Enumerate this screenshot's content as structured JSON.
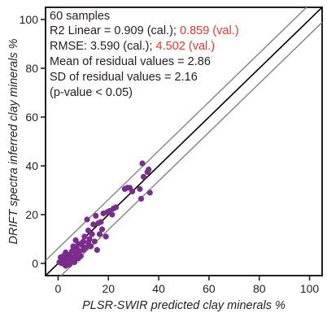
{
  "chart_data": {
    "type": "scatter",
    "xlabel": "PLSR-SWIR predicted clay minerals %",
    "ylabel": "DRIFT spectra inferred clay minerals %",
    "xlim": [
      -5,
      105
    ],
    "ylim": [
      -5,
      105
    ],
    "x_ticks": [
      "0",
      "20",
      "40",
      "60",
      "80",
      "100"
    ],
    "y_ticks": [
      "0",
      "20",
      "40",
      "60",
      "80",
      "100"
    ],
    "grid": false,
    "reference_lines": [
      {
        "kind": "1:1 line",
        "intercept": 0,
        "slope": 1,
        "color": "#000000"
      },
      {
        "kind": "upper bound",
        "intercept": 6.2,
        "slope": 1,
        "color": "#8a8a8a"
      },
      {
        "kind": "lower bound",
        "intercept": -6.2,
        "slope": 1,
        "color": "#8a8a8a"
      }
    ],
    "marker_color": "#7b2d8e",
    "stats_text": [
      {
        "text": "60 samples"
      },
      {
        "text": "R2 Linear = 0.909 (cal.); ",
        "highlight": "0.859 (val.)"
      },
      {
        "text": "RMSE: 3.590 (cal.); ",
        "highlight": "4.502 (val.)"
      },
      {
        "text": "Mean of residual values = 2.86"
      },
      {
        "text": "SD of residual values = 2.16"
      },
      {
        "text": "(p-value  < 0.05)"
      }
    ],
    "highlight_color": "#e8352e",
    "points": [
      {
        "x": 0.5,
        "y": 0.5
      },
      {
        "x": 1.0,
        "y": 2.5
      },
      {
        "x": 1.5,
        "y": 0.0
      },
      {
        "x": 2.0,
        "y": 3.0
      },
      {
        "x": 2.5,
        "y": 1.0
      },
      {
        "x": 3.0,
        "y": -1.0
      },
      {
        "x": 3.5,
        "y": 2.0
      },
      {
        "x": 4.0,
        "y": 0.5
      },
      {
        "x": 4.5,
        "y": 3.5
      },
      {
        "x": 5.0,
        "y": 1.5
      },
      {
        "x": 5.5,
        "y": 5.0
      },
      {
        "x": 6.0,
        "y": 2.5
      },
      {
        "x": 6.0,
        "y": 7.0
      },
      {
        "x": 6.5,
        "y": 0.5
      },
      {
        "x": 7.0,
        "y": 4.0
      },
      {
        "x": 7.5,
        "y": 6.0
      },
      {
        "x": 8.0,
        "y": 2.0
      },
      {
        "x": 8.0,
        "y": 8.0
      },
      {
        "x": 8.5,
        "y": 5.0
      },
      {
        "x": 9.0,
        "y": 3.0
      },
      {
        "x": 9.5,
        "y": 7.5
      },
      {
        "x": 10.0,
        "y": 9.0
      },
      {
        "x": 10.0,
        "y": 5.5
      },
      {
        "x": 10.5,
        "y": 11.0
      },
      {
        "x": 11.0,
        "y": 6.5
      },
      {
        "x": 11.5,
        "y": 18.0
      },
      {
        "x": 12.0,
        "y": 8.5
      },
      {
        "x": 12.5,
        "y": 10.0
      },
      {
        "x": 13.0,
        "y": 7.0
      },
      {
        "x": 13.5,
        "y": 12.0
      },
      {
        "x": 14.0,
        "y": 16.0
      },
      {
        "x": 14.5,
        "y": 9.0
      },
      {
        "x": 15.0,
        "y": 19.5
      },
      {
        "x": 15.5,
        "y": 5.5
      },
      {
        "x": 16.0,
        "y": 16.5
      },
      {
        "x": 16.5,
        "y": 12.0
      },
      {
        "x": 17.0,
        "y": 17.0
      },
      {
        "x": 17.5,
        "y": 14.0
      },
      {
        "x": 18.0,
        "y": 20.5
      },
      {
        "x": 19.0,
        "y": 11.0
      },
      {
        "x": 19.5,
        "y": 21.0
      },
      {
        "x": 20.5,
        "y": 21.5
      },
      {
        "x": 21.5,
        "y": 20.0
      },
      {
        "x": 22.0,
        "y": 22.5
      },
      {
        "x": 23.0,
        "y": 23.0
      },
      {
        "x": 26.5,
        "y": 30.5
      },
      {
        "x": 27.5,
        "y": 31.0
      },
      {
        "x": 28.5,
        "y": 31.0
      },
      {
        "x": 29.5,
        "y": 29.5
      },
      {
        "x": 32.5,
        "y": 30.5
      },
      {
        "x": 33.0,
        "y": 26.5
      },
      {
        "x": 33.5,
        "y": 41.0
      },
      {
        "x": 34.0,
        "y": 35.5
      },
      {
        "x": 35.5,
        "y": 37.5
      },
      {
        "x": 36.0,
        "y": 38.5
      },
      {
        "x": 36.5,
        "y": 29.0
      },
      {
        "x": 3.0,
        "y": 4.5
      },
      {
        "x": 4.5,
        "y": -0.5
      },
      {
        "x": 7.0,
        "y": 9.5
      },
      {
        "x": 12.0,
        "y": 13.5
      }
    ]
  }
}
